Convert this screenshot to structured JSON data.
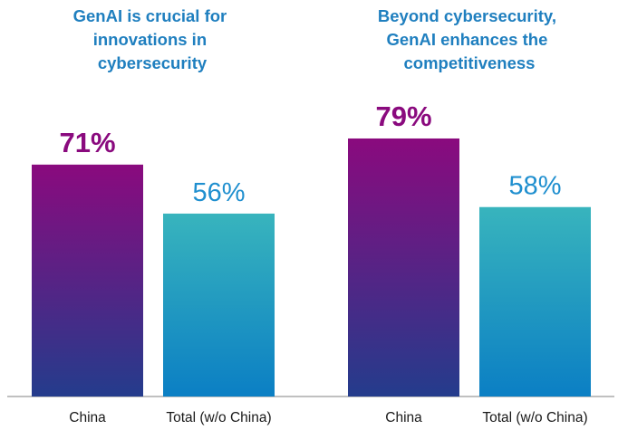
{
  "chart_data": [
    {
      "type": "bar",
      "title": "GenAI is crucial for innovations in cybersecurity",
      "title_lines": [
        "GenAI is crucial for",
        "innovations in",
        "cybersecurity"
      ],
      "categories": [
        "China",
        "Total (w/o China)"
      ],
      "values": [
        71,
        56
      ],
      "value_labels": [
        "71%",
        "56%"
      ],
      "ylim": [
        0,
        100
      ],
      "grid": false,
      "colors": {
        "China": [
          "#8a0a7e",
          "#243c8c"
        ],
        "Total (w/o China)": [
          "#38b4bd",
          "#0b7fc4"
        ]
      }
    },
    {
      "type": "bar",
      "title": "Beyond cybersecurity, GenAI enhances the competitiveness",
      "title_lines": [
        "Beyond cybersecurity,",
        "GenAI enhances the",
        "competitiveness"
      ],
      "categories": [
        "China",
        "Total (w/o China)"
      ],
      "values": [
        79,
        58
      ],
      "value_labels": [
        "79%",
        "58%"
      ],
      "ylim": [
        0,
        100
      ],
      "grid": false,
      "colors": {
        "China": [
          "#8a0a7e",
          "#243c8c"
        ],
        "Total (w/o China)": [
          "#38b4bd",
          "#0b7fc4"
        ]
      }
    }
  ],
  "colors": {
    "title": "#1f7fbf",
    "china_label": "#8a0a7e",
    "total_label": "#1f8fcf",
    "axis": "#9a9a9a",
    "category_text": "#1a1a1a"
  }
}
